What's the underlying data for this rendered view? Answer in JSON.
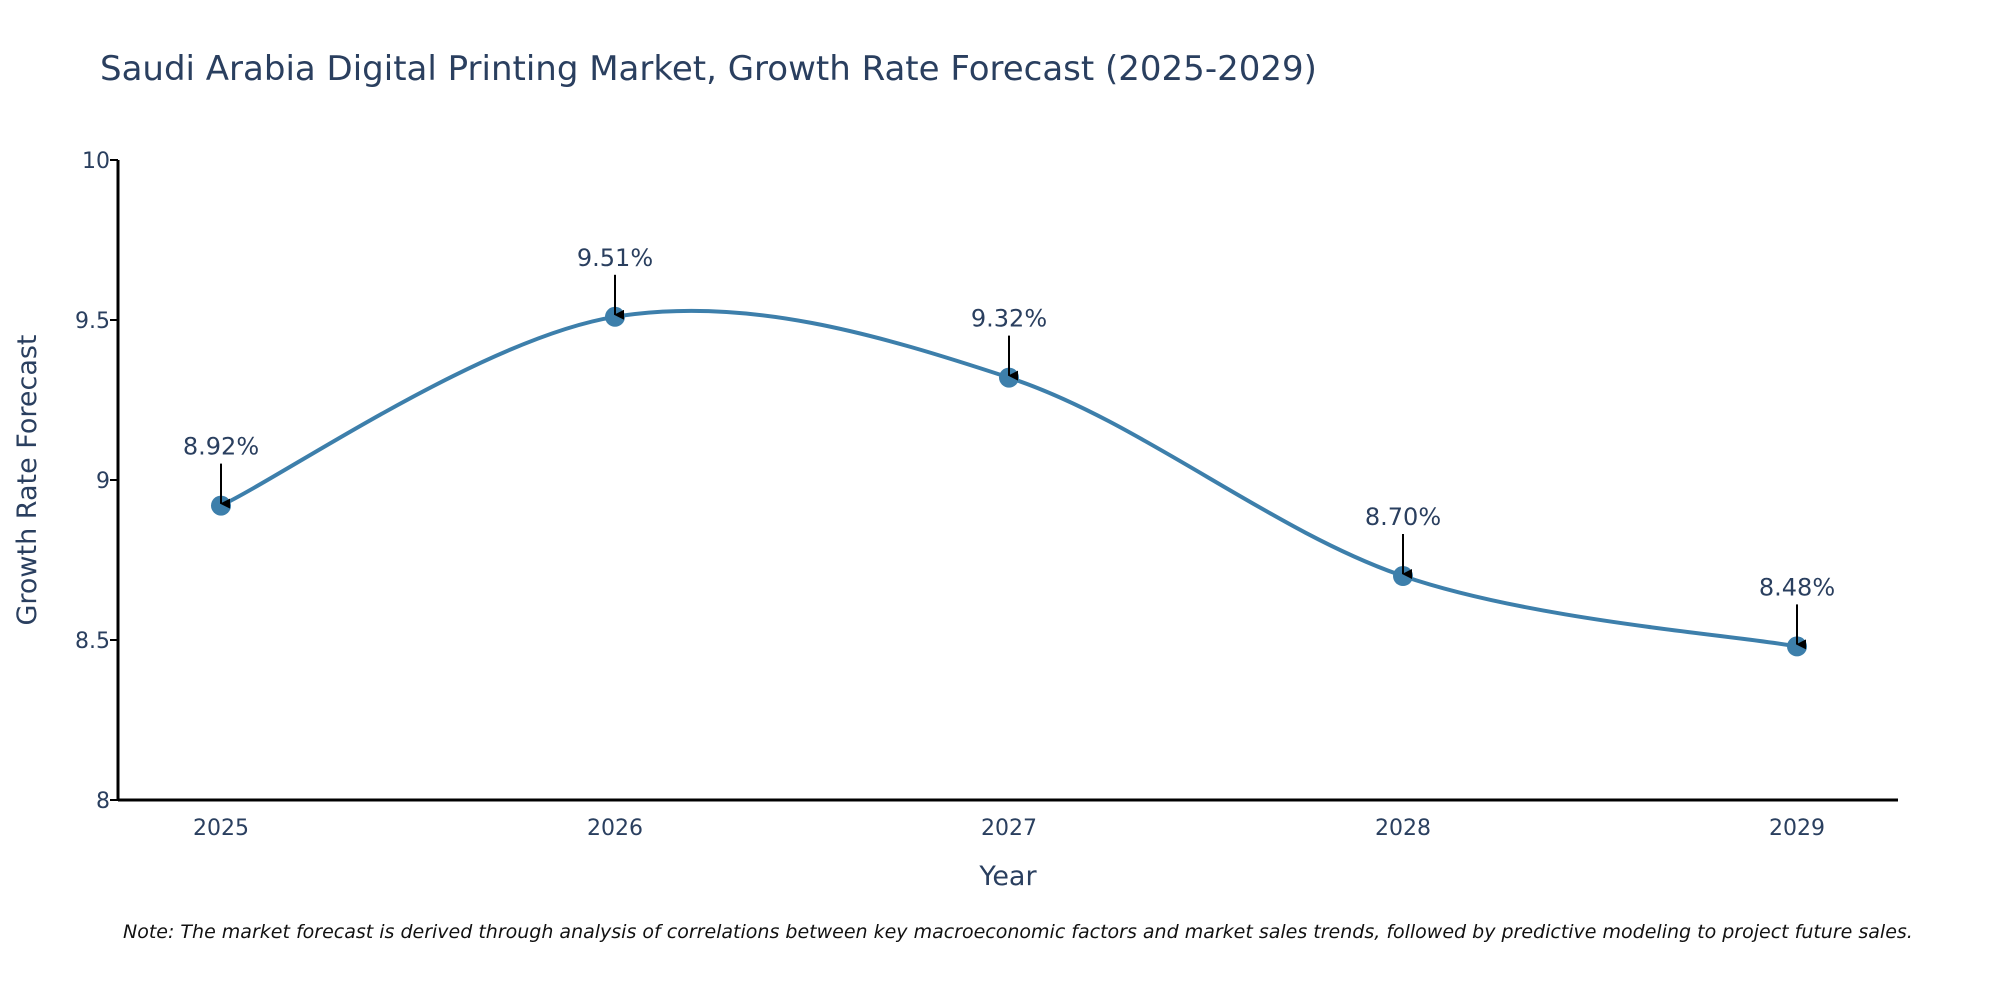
{
  "chart_data": {
    "type": "line",
    "title": "Saudi Arabia Digital Printing Market, Growth Rate Forecast (2025-2029)",
    "xlabel": "Year",
    "ylabel": "Growth Rate Forecast",
    "categories": [
      "2025",
      "2026",
      "2027",
      "2028",
      "2029"
    ],
    "values": [
      8.92,
      9.51,
      9.32,
      8.7,
      8.48
    ],
    "data_labels": [
      "8.92%",
      "9.51%",
      "9.32%",
      "8.70%",
      "8.48%"
    ],
    "ylim": [
      8,
      10
    ],
    "y_ticks": [
      8,
      8.5,
      9,
      9.5,
      10
    ],
    "y_tick_labels": [
      "8",
      "8.5",
      "9",
      "9.5",
      "10"
    ],
    "line_shape": "spline",
    "grid": false,
    "legend": "none",
    "colors": {
      "line": "#3d7fab",
      "marker": "#3d7fab",
      "text": "#2a3f5f",
      "axis": "#000000",
      "arrow": "#000000"
    },
    "note": "Note: The market forecast is derived through analysis of correlations between key macroeconomic factors and market sales trends, followed by predictive modeling to project future sales."
  }
}
